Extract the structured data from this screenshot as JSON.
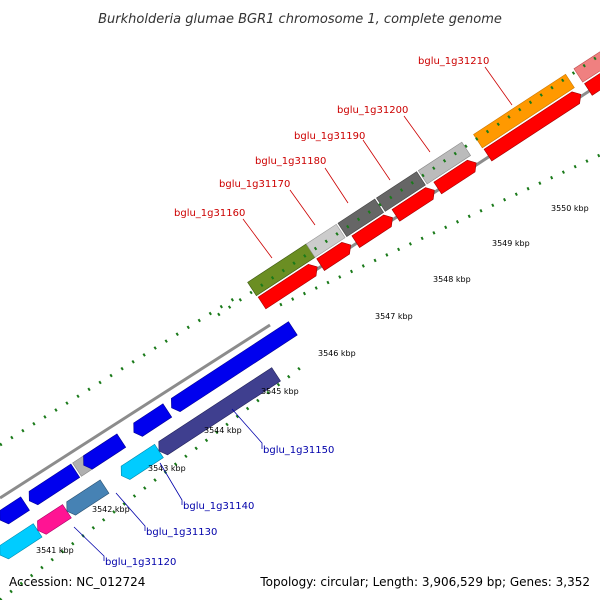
{
  "title": "Burkholderia glumae BGR1 chromosome 1, complete genome",
  "footer": {
    "accession": "Accession: NC_012724",
    "topology": "Topology: circular; Length: 3,906,529 bp; Genes: 3,352"
  },
  "colors": {
    "backbone": "#8c8c8c",
    "forward_label": "#cc0000",
    "reverse_label": "#0000aa",
    "tick": "#1a7a1a"
  },
  "ticks": [
    "3541 kbp",
    "3542 kbp",
    "3543 kbp",
    "3544 kbp",
    "3545 kbp",
    "3546 kbp",
    "3547 kbp",
    "3548 kbp",
    "3549 kbp",
    "3550 kbp"
  ],
  "forward_labels": [
    "bglu_1g31160",
    "bglu_1g31170",
    "bglu_1g31180",
    "bglu_1g31190",
    "bglu_1g31200",
    "bglu_1g31210"
  ],
  "reverse_labels": [
    "bglu_1g31120",
    "bglu_1g31130",
    "bglu_1g31140",
    "bglu_1g31150"
  ]
}
